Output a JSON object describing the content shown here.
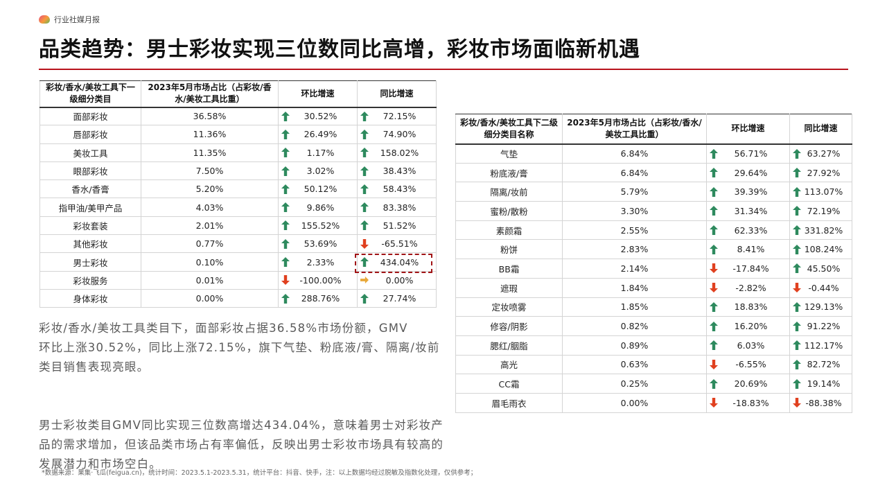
{
  "header": {
    "section_label": "行业社媒月报"
  },
  "title": "品类趋势：男士彩妆实现三位数同比高增，彩妆市场面临新机遇",
  "colors": {
    "accent_line": "#b8121b",
    "bar_start": "#c8157a",
    "up_arrow": "#2e8a5e",
    "down_arrow": "#e0401f",
    "flat_arrow": "#e8a838",
    "highlight_box": "#a11416"
  },
  "table1": {
    "headers": [
      "彩妆/香水/美妆工具下一级细分类目",
      "2023年5月市场占比（占彩妆/香水/美妆工具比重）",
      "环比增速",
      "同比增速"
    ],
    "rows": [
      {
        "name": "面部彩妆",
        "share": "36.58%",
        "share_value": 36.58,
        "mom": "30.52%",
        "mom_dir": "up",
        "yoy": "72.15%",
        "yoy_dir": "up"
      },
      {
        "name": "唇部彩妆",
        "share": "11.36%",
        "share_value": 11.36,
        "mom": "26.49%",
        "mom_dir": "up",
        "yoy": "74.90%",
        "yoy_dir": "up"
      },
      {
        "name": "美妆工具",
        "share": "11.35%",
        "share_value": 11.35,
        "mom": "1.17%",
        "mom_dir": "up",
        "yoy": "158.02%",
        "yoy_dir": "up"
      },
      {
        "name": "眼部彩妆",
        "share": "7.50%",
        "share_value": 7.5,
        "mom": "3.02%",
        "mom_dir": "up",
        "yoy": "38.43%",
        "yoy_dir": "up"
      },
      {
        "name": "香水/香膏",
        "share": "5.20%",
        "share_value": 5.2,
        "mom": "50.12%",
        "mom_dir": "up",
        "yoy": "58.43%",
        "yoy_dir": "up"
      },
      {
        "name": "指甲油/美甲产品",
        "share": "4.03%",
        "share_value": 4.03,
        "mom": "9.86%",
        "mom_dir": "up",
        "yoy": "83.38%",
        "yoy_dir": "up"
      },
      {
        "name": "彩妆套装",
        "share": "2.01%",
        "share_value": 2.01,
        "mom": "155.52%",
        "mom_dir": "up",
        "yoy": "51.52%",
        "yoy_dir": "up"
      },
      {
        "name": "其他彩妆",
        "share": "0.77%",
        "share_value": 0.77,
        "mom": "53.69%",
        "mom_dir": "up",
        "yoy": "-65.51%",
        "yoy_dir": "down"
      },
      {
        "name": "男士彩妆",
        "share": "0.10%",
        "share_value": 0.1,
        "mom": "2.33%",
        "mom_dir": "up",
        "yoy": "434.04%",
        "yoy_dir": "up"
      },
      {
        "name": "彩妆服务",
        "share": "0.01%",
        "share_value": 0.01,
        "mom": "-100.00%",
        "mom_dir": "down",
        "yoy": "0.00%",
        "yoy_dir": "flat"
      },
      {
        "name": "身体彩妆",
        "share": "0.00%",
        "share_value": 0.0,
        "mom": "288.76%",
        "mom_dir": "up",
        "yoy": "27.74%",
        "yoy_dir": "up"
      }
    ]
  },
  "table2": {
    "headers": [
      "彩妆/香水/美妆工具下二级细分类目名称",
      "2023年5月市场占比（占彩妆/香水/美妆工具比重）",
      "环比增速",
      "同比增速"
    ],
    "rows": [
      {
        "name": "气垫",
        "share": "6.84%",
        "share_value": 6.84,
        "mom": "56.71%",
        "mom_dir": "up",
        "yoy": "63.27%",
        "yoy_dir": "up"
      },
      {
        "name": "粉底液/膏",
        "share": "6.84%",
        "share_value": 6.84,
        "mom": "29.64%",
        "mom_dir": "up",
        "yoy": "27.92%",
        "yoy_dir": "up"
      },
      {
        "name": "隔离/妆前",
        "share": "5.79%",
        "share_value": 5.79,
        "mom": "39.39%",
        "mom_dir": "up",
        "yoy": "113.07%",
        "yoy_dir": "up"
      },
      {
        "name": "蜜粉/散粉",
        "share": "3.30%",
        "share_value": 3.3,
        "mom": "31.34%",
        "mom_dir": "up",
        "yoy": "72.19%",
        "yoy_dir": "up"
      },
      {
        "name": "素颜霜",
        "share": "2.55%",
        "share_value": 2.55,
        "mom": "62.33%",
        "mom_dir": "up",
        "yoy": "331.82%",
        "yoy_dir": "up"
      },
      {
        "name": "粉饼",
        "share": "2.83%",
        "share_value": 2.83,
        "mom": "8.41%",
        "mom_dir": "up",
        "yoy": "108.24%",
        "yoy_dir": "up"
      },
      {
        "name": "BB霜",
        "share": "2.14%",
        "share_value": 2.14,
        "mom": "-17.84%",
        "mom_dir": "down",
        "yoy": "45.50%",
        "yoy_dir": "up"
      },
      {
        "name": "遮瑕",
        "share": "1.84%",
        "share_value": 1.84,
        "mom": "-2.82%",
        "mom_dir": "down",
        "yoy": "-0.44%",
        "yoy_dir": "down"
      },
      {
        "name": "定妆喷雾",
        "share": "1.85%",
        "share_value": 1.85,
        "mom": "18.83%",
        "mom_dir": "up",
        "yoy": "129.13%",
        "yoy_dir": "up"
      },
      {
        "name": "修容/阴影",
        "share": "0.82%",
        "share_value": 0.82,
        "mom": "16.20%",
        "mom_dir": "up",
        "yoy": "91.22%",
        "yoy_dir": "up"
      },
      {
        "name": "腮红/胭脂",
        "share": "0.89%",
        "share_value": 0.89,
        "mom": "6.03%",
        "mom_dir": "up",
        "yoy": "112.17%",
        "yoy_dir": "up"
      },
      {
        "name": "高光",
        "share": "0.63%",
        "share_value": 0.63,
        "mom": "-6.55%",
        "mom_dir": "down",
        "yoy": "82.72%",
        "yoy_dir": "up"
      },
      {
        "name": "CC霜",
        "share": "0.25%",
        "share_value": 0.25,
        "mom": "20.69%",
        "mom_dir": "up",
        "yoy": "19.14%",
        "yoy_dir": "up"
      },
      {
        "name": "眉毛雨衣",
        "share": "0.00%",
        "share_value": 0.0,
        "mom": "-18.83%",
        "mom_dir": "down",
        "yoy": "-88.38%",
        "yoy_dir": "down"
      }
    ]
  },
  "paragraph1_line1": "彩妆/香水/美妆工具类目下，面部彩妆占据36.58%市场份额，GMV",
  "paragraph1_line2": "环比上涨30.52%，同比上涨72.15%，旗下气垫、粉底液/膏、隔离/妆前类目销售表现亮眼。",
  "paragraph2": "男士彩妆类目GMV同比实现三位数高增达434.04%，意味着男士对彩妆产品的需求增加，但该品类市场占有率偏低，反映出男士彩妆市场具有较高的发展潜力和市场空白。",
  "footnote": "*数据来源：果集·飞瓜(feigua.cn)，统计时间：2023.5.1-2023.5.31，统计平台：抖音、快手，注：以上数据均经过脱敏及指数化处理，仅供参考；",
  "watermark": "果集·飞瓜"
}
